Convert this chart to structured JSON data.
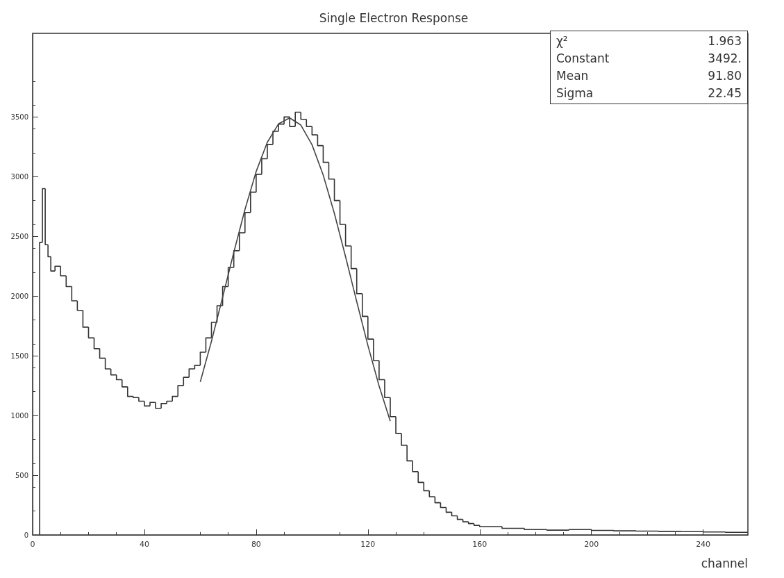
{
  "chart_data": {
    "type": "histogram",
    "title": "Single Electron Response",
    "xlabel": "channel",
    "series": [
      {
        "type": "histogram",
        "color": "#333333",
        "bins": [
          2.5,
          3.5,
          4.5,
          5.5,
          6.5,
          8,
          10,
          12,
          14,
          16,
          18,
          20,
          22,
          24,
          26,
          28,
          30,
          32,
          34,
          36,
          38,
          40,
          42,
          44,
          46,
          48,
          50,
          52,
          54,
          56,
          58,
          60,
          62,
          64,
          66,
          68,
          70,
          72,
          74,
          76,
          78,
          80,
          82,
          84,
          86,
          88,
          90,
          92,
          94,
          96,
          98,
          100,
          102,
          104,
          106,
          108,
          110,
          112,
          114,
          116,
          118,
          120,
          122,
          124,
          126,
          128,
          130,
          132,
          134,
          136,
          138,
          140,
          142,
          144,
          146,
          148,
          150,
          152,
          154,
          156,
          158,
          160,
          168,
          176,
          184,
          192,
          200,
          208,
          216,
          224,
          232,
          240,
          248,
          256
        ],
        "values": [
          2450,
          2900,
          2430,
          2330,
          2210,
          2250,
          2170,
          2080,
          1960,
          1880,
          1740,
          1650,
          1560,
          1480,
          1390,
          1340,
          1300,
          1240,
          1160,
          1150,
          1120,
          1080,
          1110,
          1060,
          1100,
          1120,
          1160,
          1250,
          1320,
          1390,
          1420,
          1530,
          1650,
          1780,
          1920,
          2080,
          2240,
          2380,
          2530,
          2700,
          2870,
          3020,
          3150,
          3270,
          3380,
          3440,
          3500,
          3420,
          3540,
          3480,
          3420,
          3350,
          3260,
          3120,
          2980,
          2800,
          2600,
          2420,
          2230,
          2020,
          1830,
          1640,
          1460,
          1300,
          1150,
          990,
          850,
          750,
          620,
          530,
          440,
          370,
          320,
          270,
          230,
          190,
          160,
          130,
          110,
          95,
          80,
          70,
          55,
          45,
          40,
          45,
          38,
          34,
          32,
          30,
          28,
          25,
          22
        ]
      },
      {
        "type": "line",
        "color": "#444444",
        "x": [
          60,
          64,
          68,
          72,
          76,
          80,
          84,
          88,
          92,
          96,
          100,
          104,
          108,
          112,
          116,
          120,
          124,
          128
        ],
        "values": [
          1281,
          1622,
          1991,
          2366,
          2725,
          3043,
          3288,
          3442,
          3492,
          3432,
          3267,
          3013,
          2692,
          2330,
          1953,
          1586,
          1248,
          952
        ]
      }
    ],
    "marker": "none",
    "line_style": "solid",
    "xlim": [
      0,
      256
    ],
    "xticks": [
      0,
      40,
      80,
      120,
      160,
      200,
      240
    ],
    "ylim": [
      0,
      4200
    ],
    "yticks": [
      0,
      500,
      1000,
      1500,
      2000,
      2500,
      3000,
      3500
    ],
    "grid": false,
    "annotations": [
      "χ² 1.963",
      "Constant 3492.",
      "Mean 91.80",
      "Sigma 22.45"
    ]
  }
}
